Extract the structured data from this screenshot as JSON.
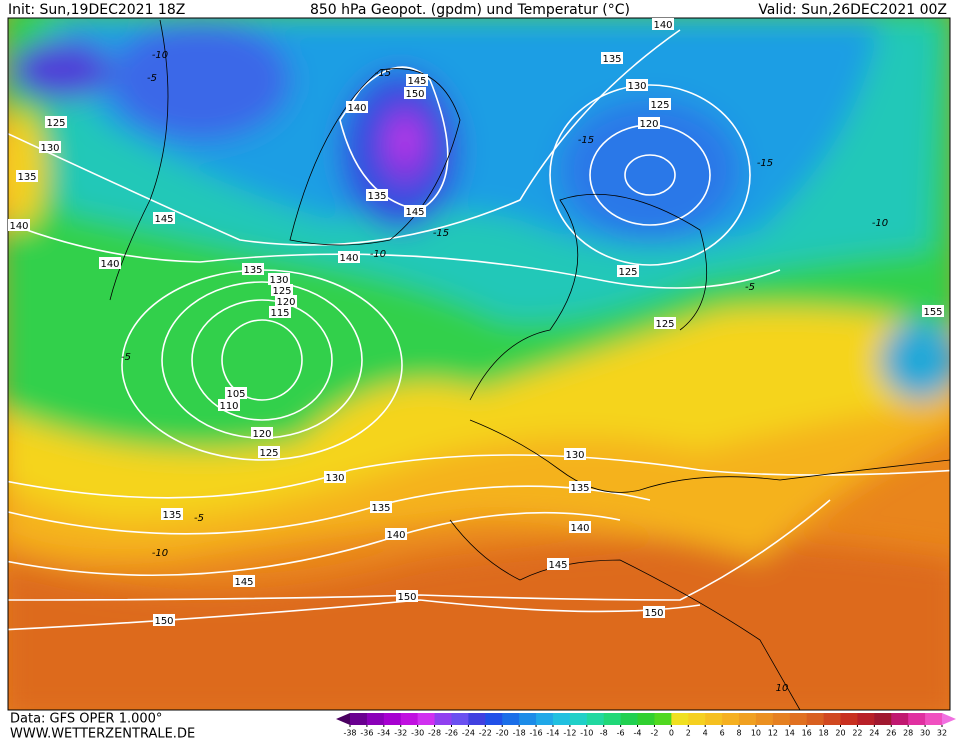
{
  "header": {
    "init": "Init: Sun,19DEC2021 18Z",
    "title": "850 hPa Geopot. (gpdm) und Temperatur (°C)",
    "valid": "Valid: Sun,26DEC2021 00Z"
  },
  "contour_labels": [
    140,
    135,
    130,
    125,
    120,
    145,
    150,
    140,
    135,
    145,
    140,
    125,
    125,
    155,
    125,
    130,
    135,
    140,
    145,
    140,
    135,
    130,
    125,
    120,
    115,
    105,
    110,
    120,
    125,
    130,
    130,
    135,
    135,
    135,
    140,
    140,
    145,
    145,
    150,
    150,
    150
  ],
  "isotherm_labels": [
    "-10",
    "-5",
    "-15",
    "-15",
    "-15",
    "-15",
    "-10",
    "-10",
    "-5",
    "-5",
    "-5",
    "-10",
    "10"
  ],
  "colorbar": {
    "ticks": [
      -38,
      -36,
      -34,
      -32,
      -30,
      -28,
      -26,
      -24,
      -22,
      -20,
      -18,
      -16,
      -14,
      -12,
      -10,
      -8,
      -6,
      -4,
      -2,
      0,
      2,
      4,
      6,
      8,
      10,
      12,
      14,
      16,
      18,
      20,
      22,
      24,
      26,
      28,
      30,
      32
    ],
    "colors": [
      "#4a0060",
      "#6a0090",
      "#8a00b8",
      "#a600d0",
      "#c010e0",
      "#d030f0",
      "#9040f0",
      "#6a50f0",
      "#4040e0",
      "#2050e8",
      "#1a6ee8",
      "#1c8ce8",
      "#20a8e8",
      "#20c0e0",
      "#20d0c8",
      "#20d8a0",
      "#20d878",
      "#20d050",
      "#30d030",
      "#50d820",
      "#f0e020",
      "#f5d020",
      "#f5c020",
      "#f5b020",
      "#f0a020",
      "#eb9020",
      "#e58020",
      "#e07020",
      "#d86020",
      "#d04820",
      "#c83020",
      "#b82028",
      "#a01830",
      "#c01870",
      "#e030a0",
      "#f050c0",
      "#f070e0"
    ]
  },
  "footer": {
    "data": "Data: GFS OPER 1.000°",
    "site": "WWW.WETTERZENTRALE.DE"
  }
}
